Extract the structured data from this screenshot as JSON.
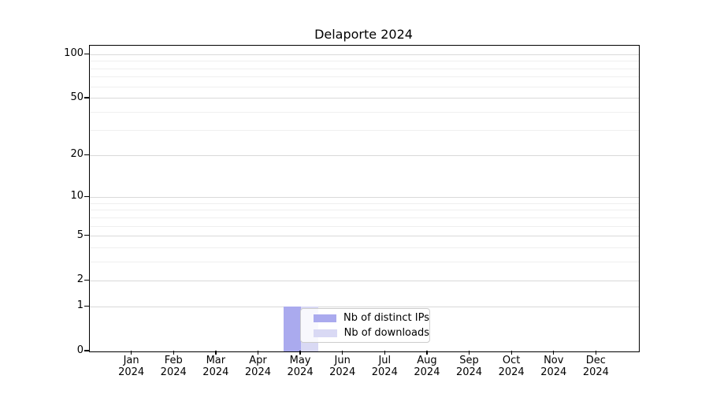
{
  "chart_data": {
    "type": "bar",
    "title": "Delaporte 2024",
    "x_axis": {
      "months": [
        "Jan",
        "Feb",
        "Mar",
        "Apr",
        "May",
        "Jun",
        "Jul",
        "Aug",
        "Sep",
        "Oct",
        "Nov",
        "Dec"
      ],
      "year": "2024"
    },
    "y_axis": {
      "scale": "log1p",
      "major_ticks": [
        0,
        1,
        2,
        5,
        10,
        20,
        50,
        100
      ],
      "minor_gridlines": [
        3,
        4,
        6,
        7,
        8,
        9,
        30,
        40,
        60,
        70,
        80,
        90
      ],
      "ylim": [
        0,
        115
      ]
    },
    "series": [
      {
        "name": "Nb of distinct IPs",
        "color": "#aaaaee",
        "values": [
          0,
          0,
          0,
          0,
          1,
          0,
          0,
          0,
          0,
          0,
          0,
          0
        ]
      },
      {
        "name": "Nb of downloads",
        "color": "#d9d9f4",
        "values": [
          0,
          0,
          0,
          0,
          1,
          0,
          0,
          0,
          0,
          0,
          0,
          0
        ]
      }
    ],
    "legend_position": "lower center",
    "grid": true
  },
  "colors": {
    "grid_major": "#d9d9d9",
    "grid_minor": "#efefef",
    "spine": "#000000",
    "legend_border": "#cccccc"
  }
}
